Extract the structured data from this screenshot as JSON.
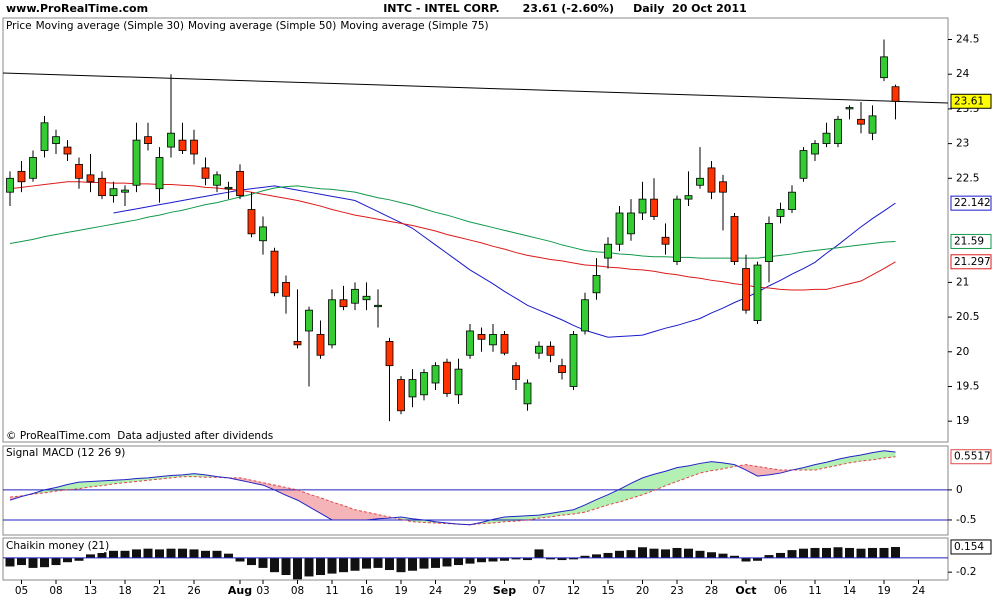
{
  "site": "www.ProRealTime.com",
  "chart_data": [
    {
      "type": "candlestick",
      "title": "INTC - INTEL CORP.      23.61 (-2.60%)     Daily  20 Oct 2011",
      "annotation": "© ProRealTime.com  Data adjusted after dividends",
      "price": {
        "name": "Price",
        "color": "#000000",
        "up_color": "#33cc33",
        "down_color": "#ff3300",
        "open": [
          22.3,
          22.6,
          22.5,
          22.9,
          23.0,
          22.95,
          22.7,
          22.55,
          22.5,
          22.25,
          22.3,
          22.4,
          23.1,
          22.35,
          22.95,
          23.05,
          23.05,
          22.65,
          22.4,
          22.35,
          22.6,
          22.05,
          21.6,
          21.45,
          21.0,
          20.15,
          20.3,
          20.25,
          20.1,
          20.75,
          20.7,
          20.75,
          20.65,
          20.15,
          19.6,
          19.35,
          19.38,
          19.55,
          19.85,
          19.38,
          19.95,
          20.25,
          20.1,
          20.25,
          19.8,
          19.25,
          19.98,
          20.08,
          19.8,
          19.5,
          20.3,
          20.85,
          21.35,
          21.55,
          21.7,
          22.0,
          22.2,
          21.65,
          21.3,
          22.2,
          22.4,
          22.65,
          22.45,
          21.95,
          21.2,
          20.45,
          21.3,
          21.95,
          22.05,
          22.5,
          22.85,
          23.0,
          23.0,
          23.5,
          23.35,
          23.15,
          23.95,
          23.82,
          null,
          null
        ],
        "high": [
          22.6,
          22.75,
          22.9,
          23.4,
          23.2,
          23.05,
          22.8,
          22.85,
          22.6,
          22.45,
          22.4,
          23.3,
          23.3,
          22.95,
          24.0,
          23.3,
          23.2,
          22.8,
          22.6,
          22.45,
          22.7,
          22.3,
          21.95,
          21.5,
          21.1,
          20.9,
          20.65,
          20.45,
          20.9,
          20.95,
          21.0,
          21.0,
          20.9,
          20.2,
          19.65,
          19.75,
          19.75,
          19.85,
          19.9,
          19.9,
          20.4,
          20.35,
          20.4,
          20.3,
          19.85,
          19.6,
          20.15,
          20.15,
          19.9,
          20.3,
          20.85,
          21.35,
          21.65,
          22.1,
          22.2,
          22.45,
          22.5,
          21.85,
          22.25,
          22.6,
          22.95,
          22.75,
          22.55,
          22.0,
          21.4,
          21.3,
          21.95,
          22.15,
          22.4,
          22.95,
          23.05,
          23.3,
          23.4,
          23.55,
          23.6,
          23.55,
          24.5,
          23.85,
          null,
          null
        ],
        "low": [
          22.1,
          22.3,
          22.45,
          22.8,
          22.85,
          22.75,
          22.35,
          22.3,
          22.2,
          22.15,
          22.1,
          22.3,
          22.9,
          22.15,
          22.8,
          22.85,
          22.7,
          22.4,
          22.3,
          22.2,
          22.2,
          21.65,
          21.4,
          20.8,
          20.55,
          20.05,
          19.5,
          19.9,
          20.05,
          20.6,
          20.6,
          20.6,
          20.35,
          19.0,
          19.1,
          19.2,
          19.3,
          19.45,
          19.35,
          19.25,
          19.9,
          20.0,
          20.0,
          19.95,
          19.45,
          19.15,
          19.9,
          19.85,
          19.6,
          19.45,
          20.25,
          20.75,
          21.2,
          21.45,
          21.6,
          21.9,
          21.9,
          21.4,
          21.25,
          22.1,
          22.35,
          22.2,
          21.75,
          21.25,
          20.55,
          20.4,
          21.0,
          21.85,
          22.0,
          22.45,
          22.75,
          22.95,
          22.95,
          23.35,
          23.15,
          23.05,
          23.9,
          23.35,
          null,
          null
        ],
        "close": [
          22.5,
          22.45,
          22.8,
          23.3,
          23.1,
          22.85,
          22.5,
          22.45,
          22.25,
          22.35,
          22.33,
          23.05,
          23.0,
          22.8,
          23.15,
          22.9,
          22.85,
          22.5,
          22.55,
          22.37,
          22.25,
          21.7,
          21.8,
          20.85,
          20.8,
          20.1,
          20.6,
          19.95,
          20.75,
          20.65,
          20.9,
          20.8,
          20.67,
          19.8,
          19.15,
          19.6,
          19.7,
          19.8,
          19.4,
          19.75,
          20.3,
          20.18,
          20.25,
          19.98,
          19.6,
          19.55,
          20.08,
          19.95,
          19.7,
          20.25,
          20.75,
          21.1,
          21.55,
          22.0,
          22.0,
          22.2,
          21.95,
          21.55,
          22.2,
          22.25,
          22.5,
          22.3,
          22.3,
          21.3,
          20.6,
          21.25,
          21.85,
          22.05,
          22.3,
          22.9,
          23.0,
          23.15,
          23.35,
          23.52,
          23.28,
          23.4,
          24.25,
          23.61,
          null,
          null
        ]
      },
      "series": [
        {
          "name": "Moving average (Simple 30)",
          "color": "#1a1acc",
          "values": [
            null,
            null,
            null,
            null,
            null,
            null,
            null,
            null,
            null,
            22.0,
            22.03,
            22.06,
            22.09,
            22.12,
            22.15,
            22.18,
            22.21,
            22.24,
            22.27,
            22.3,
            22.33,
            22.35,
            22.37,
            22.39,
            22.36,
            22.33,
            22.3,
            22.27,
            22.24,
            22.21,
            22.18,
            22.1,
            22.02,
            21.94,
            21.86,
            21.78,
            21.66,
            21.54,
            21.42,
            21.3,
            21.18,
            21.08,
            20.98,
            20.87,
            20.77,
            20.67,
            20.6,
            20.53,
            20.46,
            20.38,
            20.31,
            20.26,
            20.21,
            20.22,
            20.23,
            20.24,
            20.29,
            20.34,
            20.38,
            20.43,
            20.48,
            20.56,
            20.63,
            20.71,
            20.78,
            20.86,
            20.95,
            21.03,
            21.12,
            21.2,
            21.29,
            21.42,
            21.54,
            21.67,
            21.8,
            21.92,
            22.03,
            22.142,
            null,
            null
          ]
        },
        {
          "name": "Moving average (Simple 50)",
          "color": "#dd1a1a",
          "values": [
            22.35,
            22.37,
            22.39,
            22.41,
            22.43,
            22.45,
            22.45,
            22.44,
            22.44,
            22.43,
            22.43,
            22.42,
            22.42,
            22.41,
            22.41,
            22.4,
            22.39,
            22.37,
            22.36,
            22.34,
            22.33,
            22.3,
            22.27,
            22.24,
            22.21,
            22.18,
            22.14,
            22.1,
            22.05,
            22.01,
            21.97,
            21.94,
            21.91,
            21.88,
            21.85,
            21.82,
            21.78,
            21.74,
            21.69,
            21.65,
            21.61,
            21.57,
            21.52,
            21.48,
            21.43,
            21.39,
            21.36,
            21.33,
            21.31,
            21.28,
            21.25,
            21.24,
            21.22,
            21.21,
            21.19,
            21.18,
            21.16,
            21.13,
            21.11,
            21.08,
            21.06,
            21.03,
            21.01,
            20.98,
            20.96,
            20.93,
            20.92,
            20.9,
            20.89,
            20.89,
            20.9,
            20.9,
            20.94,
            20.98,
            21.02,
            21.11,
            21.2,
            21.297,
            null,
            null
          ]
        },
        {
          "name": "Moving average (Simple 75)",
          "color": "#11994a",
          "values": [
            21.56,
            21.59,
            21.62,
            21.66,
            21.69,
            21.72,
            21.75,
            21.78,
            21.81,
            21.84,
            21.87,
            21.9,
            21.94,
            21.97,
            22.01,
            22.04,
            22.08,
            22.12,
            22.15,
            22.19,
            22.23,
            22.27,
            22.32,
            22.36,
            22.38,
            22.39,
            22.37,
            22.35,
            22.34,
            22.32,
            22.3,
            22.26,
            22.22,
            22.19,
            22.15,
            22.11,
            22.06,
            22.01,
            21.97,
            21.92,
            21.87,
            21.83,
            21.79,
            21.75,
            21.71,
            21.67,
            21.63,
            21.59,
            21.54,
            21.5,
            21.46,
            21.44,
            21.43,
            21.41,
            21.4,
            21.38,
            21.37,
            21.37,
            21.36,
            21.36,
            21.35,
            21.35,
            21.35,
            21.35,
            21.35,
            21.35,
            21.37,
            21.39,
            21.41,
            21.44,
            21.46,
            21.48,
            21.5,
            21.52,
            21.54,
            21.56,
            21.58,
            21.59,
            null,
            null
          ]
        }
      ],
      "ylim": [
        18.7,
        24.81
      ],
      "yticks": [
        19,
        19.5,
        20,
        20.5,
        21,
        22.5,
        23,
        23.5,
        24,
        24.5
      ],
      "grid": false
    },
    {
      "type": "line",
      "series": [
        {
          "name": "Signal",
          "color": "#e04848",
          "values": [
            -0.12,
            -0.1,
            -0.07,
            -0.05,
            -0.02,
            0,
            0.02,
            0.05,
            0.07,
            0.1,
            0.12,
            0.14,
            0.16,
            0.18,
            0.2,
            0.22,
            0.22,
            0.21,
            0.21,
            0.2,
            0.2,
            0.16,
            0.12,
            0.08,
            0.04,
            0,
            -0.07,
            -0.13,
            -0.2,
            -0.26,
            -0.33,
            -0.37,
            -0.41,
            -0.45,
            -0.49,
            -0.53,
            -0.54,
            -0.55,
            -0.56,
            -0.57,
            -0.58,
            -0.56,
            -0.55,
            -0.53,
            -0.52,
            -0.5,
            -0.47,
            -0.45,
            -0.42,
            -0.4,
            -0.37,
            -0.31,
            -0.25,
            -0.2,
            -0.14,
            -0.08,
            -0.01,
            0.07,
            0.14,
            0.21,
            0.28,
            0.32,
            0.35,
            0.39,
            0.42,
            0.39,
            0.36,
            0.33,
            0.33,
            0.33,
            0.33,
            0.37,
            0.41,
            0.45,
            0.48,
            0.5,
            0.53,
            0.5517,
            null,
            null
          ]
        },
        {
          "name": "MACD (12 26 9)",
          "color": "#2323c8",
          "values": [
            -0.17,
            -0.11,
            -0.06,
            0,
            0.04,
            0.09,
            0.13,
            0.14,
            0.15,
            0.16,
            0.17,
            0.19,
            0.2,
            0.22,
            0.24,
            0.25,
            0.27,
            0.25,
            0.22,
            0.2,
            0.16,
            0.12,
            0.08,
            0,
            -0.09,
            -0.17,
            -0.28,
            -0.39,
            -0.5,
            -0.5,
            -0.5,
            -0.5,
            -0.48,
            -0.47,
            -0.45,
            -0.48,
            -0.5,
            -0.53,
            -0.55,
            -0.57,
            -0.58,
            -0.54,
            -0.49,
            -0.45,
            -0.44,
            -0.43,
            -0.42,
            -0.39,
            -0.36,
            -0.33,
            -0.25,
            -0.16,
            -0.08,
            0.01,
            0.11,
            0.2,
            0.26,
            0.31,
            0.37,
            0.4,
            0.44,
            0.47,
            0.45,
            0.42,
            0.33,
            0.23,
            0.25,
            0.28,
            0.33,
            0.37,
            0.42,
            0.46,
            0.51,
            0.55,
            0.58,
            0.62,
            0.65,
            0.63,
            null,
            null
          ]
        }
      ],
      "fill_above": "#b4f0b4",
      "fill_below": "#f4b4b8",
      "ylim": [
        -0.75,
        0.73
      ],
      "yticks": [
        -0.5,
        0
      ]
    },
    {
      "type": "bar",
      "series": [
        {
          "name": "Chaikin money (21)",
          "color": "#111111",
          "values": [
            -0.12,
            -0.1,
            -0.14,
            -0.13,
            -0.1,
            -0.06,
            -0.04,
            0.05,
            0.08,
            0.1,
            0.1,
            0.12,
            0.13,
            0.12,
            0.13,
            0.13,
            0.12,
            0.1,
            0.1,
            0.06,
            -0.05,
            -0.1,
            -0.14,
            -0.2,
            -0.24,
            -0.3,
            -0.26,
            -0.24,
            -0.22,
            -0.2,
            -0.18,
            -0.15,
            -0.14,
            -0.17,
            -0.2,
            -0.18,
            -0.15,
            -0.14,
            -0.12,
            -0.1,
            -0.08,
            -0.06,
            -0.05,
            -0.04,
            -0.02,
            -0.03,
            0.12,
            -0.02,
            -0.03,
            -0.02,
            0.03,
            0.05,
            0.07,
            0.1,
            0.11,
            0.15,
            0.13,
            0.12,
            0.14,
            0.13,
            0.1,
            0.08,
            0.06,
            0.03,
            -0.05,
            -0.04,
            0.04,
            0.07,
            0.11,
            0.13,
            0.14,
            0.14,
            0.15,
            0.14,
            0.13,
            0.14,
            0.14,
            0.154,
            null,
            null
          ]
        }
      ],
      "categories": [
        null,
        "05",
        null,
        null,
        "08",
        null,
        null,
        "13",
        null,
        null,
        "18",
        null,
        null,
        "21",
        null,
        null,
        "26",
        null,
        null,
        null,
        "Aug",
        null,
        "03",
        null,
        null,
        "08",
        null,
        null,
        "11",
        null,
        null,
        "16",
        null,
        null,
        "19",
        null,
        null,
        "24",
        null,
        null,
        "29",
        null,
        null,
        "Sep",
        null,
        null,
        "07",
        null,
        null,
        "12",
        null,
        null,
        "15",
        null,
        null,
        "20",
        null,
        null,
        "23",
        null,
        null,
        "28",
        null,
        null,
        "Oct",
        null,
        null,
        "06",
        null,
        null,
        "11",
        null,
        null,
        "14",
        null,
        null,
        "19",
        null,
        null,
        "24"
      ],
      "ylim": [
        -0.31,
        0.28
      ],
      "yticks": [
        -0.2
      ]
    }
  ]
}
